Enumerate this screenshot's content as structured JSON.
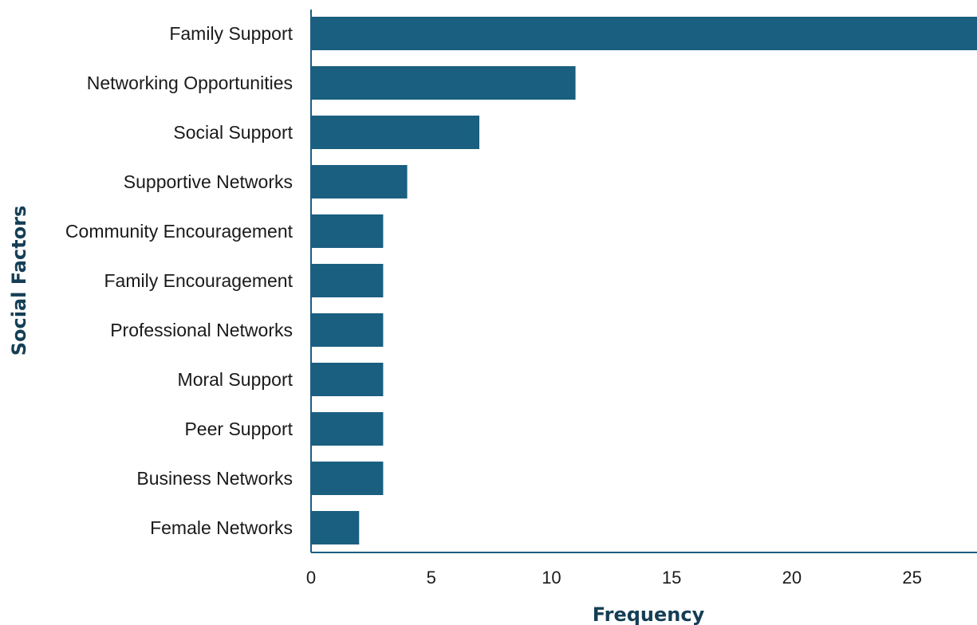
{
  "chart_data": {
    "type": "bar",
    "orientation": "horizontal",
    "title": "",
    "xlabel": "Frequency",
    "ylabel": "Social Factors",
    "categories": [
      "Family Support",
      "Networking Opportunities",
      "Social Support",
      "Supportive Networks",
      "Community Encouragement",
      "Family Encouragement",
      "Professional Networks",
      "Moral Support",
      "Peer Support",
      "Business Networks",
      "Female Networks"
    ],
    "values": [
      30,
      11,
      7,
      4,
      3,
      3,
      3,
      3,
      3,
      3,
      2
    ],
    "xticks": [
      0,
      5,
      10,
      15,
      20,
      25
    ],
    "xlim": [
      0,
      27.7
    ],
    "grid": false,
    "legend": "none",
    "colors": {
      "bar": "#1a5f80",
      "axis": "#1a5f80",
      "axis_title": "#153e56"
    }
  }
}
